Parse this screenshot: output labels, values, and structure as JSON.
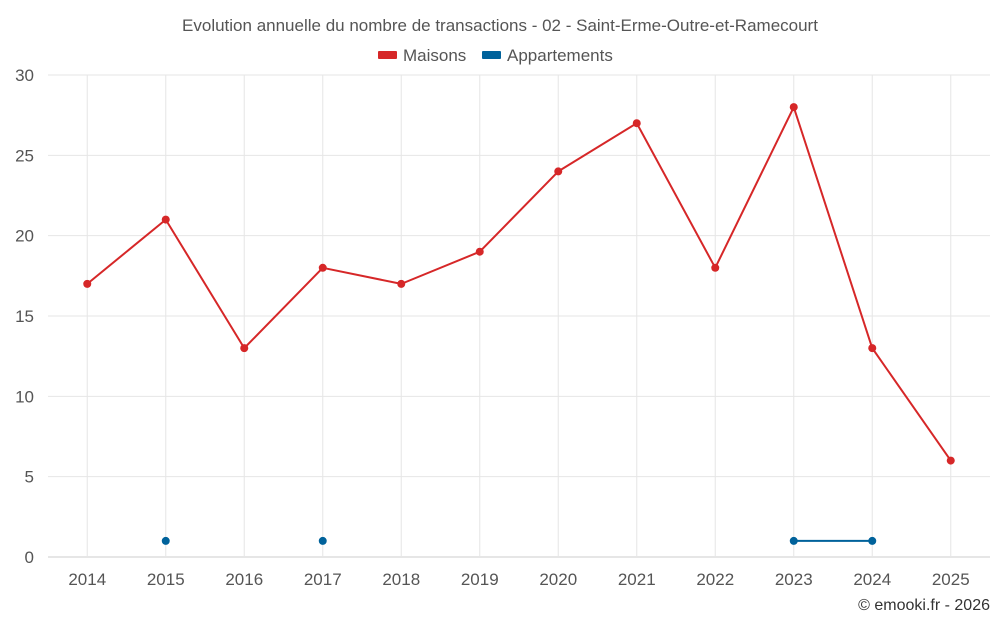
{
  "chart_data": {
    "type": "line",
    "title": "Evolution annuelle du nombre de transactions - 02 - Saint-Erme-Outre-et-Ramecourt",
    "xlabel": "",
    "ylabel": "",
    "categories": [
      "2014",
      "2015",
      "2016",
      "2017",
      "2018",
      "2019",
      "2020",
      "2021",
      "2022",
      "2023",
      "2024",
      "2025"
    ],
    "ylim": [
      0,
      30
    ],
    "yticks": [
      "0",
      "5",
      "10",
      "15",
      "20",
      "25",
      "30"
    ],
    "grid": true,
    "legend": "top-center",
    "series": [
      {
        "name": "Maisons",
        "color": "#d62728",
        "values": [
          17,
          21,
          13,
          18,
          17,
          19,
          24,
          27,
          18,
          28,
          13,
          6
        ]
      },
      {
        "name": "Appartements",
        "color": "#00629b",
        "values": [
          null,
          1,
          null,
          1,
          null,
          null,
          null,
          null,
          null,
          1,
          1,
          null
        ]
      }
    ],
    "credit": "© emooki.fr - 2026"
  }
}
